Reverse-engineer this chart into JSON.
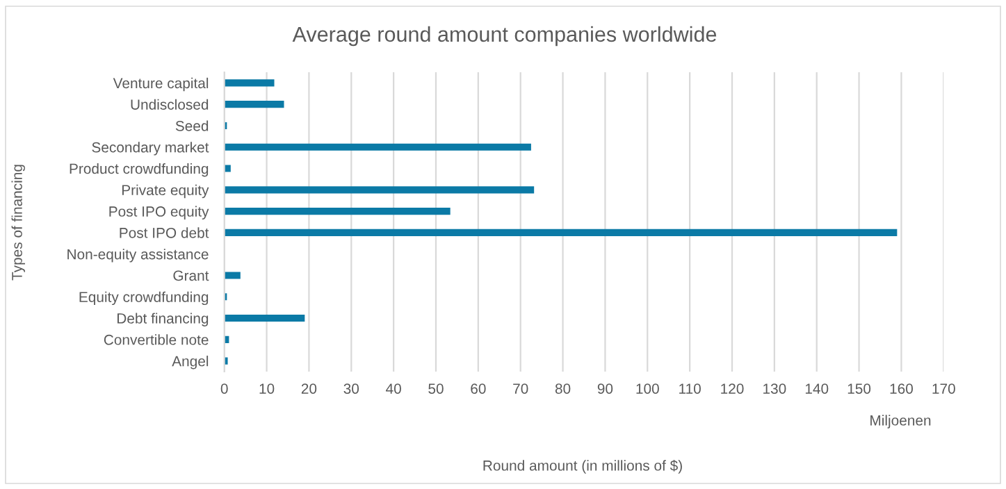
{
  "chart_data": {
    "type": "bar",
    "orientation": "horizontal",
    "title": "Average round amount companies worldwide",
    "xlabel": "Round amount (in millions of $)",
    "ylabel": "Types of financing",
    "annotations": [
      "Miljoenen"
    ],
    "categories": [
      "Venture capital",
      "Undisclosed",
      "Seed",
      "Secondary market",
      "Product crowdfunding",
      "Private equity",
      "Post IPO equity",
      "Post IPO debt",
      "Non-equity assistance",
      "Grant",
      "Equity crowdfunding",
      "Debt financing",
      "Convertible note",
      "Angel"
    ],
    "values": [
      11.8,
      14.1,
      0.6,
      72.5,
      1.5,
      73.2,
      53.4,
      159,
      null,
      3.8,
      0.6,
      19,
      1.1,
      0.8
    ],
    "color": "#0b7aa6",
    "xlim": [
      0,
      170
    ],
    "xticks": [
      0,
      10,
      20,
      30,
      40,
      50,
      60,
      70,
      80,
      90,
      100,
      110,
      120,
      130,
      140,
      150,
      160,
      170
    ],
    "grid": "x",
    "legend": false
  }
}
